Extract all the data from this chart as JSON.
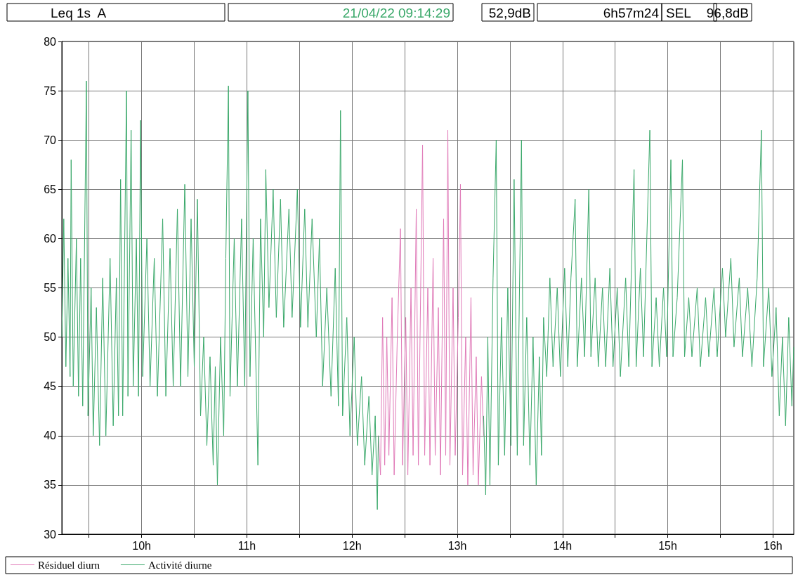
{
  "chart_data": {
    "type": "line",
    "title": "Leq 1s  A",
    "annotations": [
      "21/04/22 09:14:29",
      "52,9dB",
      "6h57m24",
      "SEL",
      "96,8dB"
    ],
    "xlim": [
      9.2414,
      16.198
    ],
    "xticks": [
      {
        "value": 9.5,
        "label": null
      },
      {
        "value": 10,
        "label": "10h"
      },
      {
        "value": 10.5,
        "label": null
      },
      {
        "value": 11,
        "label": "11h"
      },
      {
        "value": 11.5,
        "label": null
      },
      {
        "value": 12,
        "label": "12h"
      },
      {
        "value": 12.5,
        "label": null
      },
      {
        "value": 13,
        "label": "13h"
      },
      {
        "value": 13.5,
        "label": null
      },
      {
        "value": 14,
        "label": "14h"
      },
      {
        "value": 14.5,
        "label": null
      },
      {
        "value": 15,
        "label": "15h"
      },
      {
        "value": 15.5,
        "label": null
      },
      {
        "value": 16,
        "label": "16h"
      }
    ],
    "ylim": [
      30,
      80
    ],
    "yticks": [
      30,
      35,
      40,
      45,
      50,
      55,
      60,
      65,
      70,
      75,
      80
    ],
    "grid": true,
    "legend": "bottom",
    "marker": "none",
    "line_style": "solid",
    "series": [
      {
        "name": "Résiduel diurn",
        "color": "#e07ab8",
        "x": [
          12.25,
          12.27,
          12.29,
          12.31,
          12.33,
          12.35,
          12.38,
          12.4,
          12.43,
          12.46,
          12.48,
          12.51,
          12.53,
          12.56,
          12.58,
          12.61,
          12.63,
          12.67,
          12.69,
          12.72,
          12.74,
          12.77,
          12.79,
          12.82,
          12.84,
          12.87,
          12.89,
          12.91,
          12.93,
          12.96,
          12.98,
          13.01,
          13.03,
          13.05,
          13.08,
          13.1,
          13.13,
          13.15,
          13.18,
          13.2,
          13.23,
          13.25
        ],
        "values": [
          40,
          36,
          52,
          37,
          50,
          38,
          54,
          36,
          50,
          61,
          37,
          52,
          36,
          55,
          38,
          63,
          37,
          69.5,
          38,
          55,
          37,
          58,
          38,
          53,
          36,
          62,
          38,
          71,
          37,
          55,
          38,
          52,
          65.5,
          36,
          50,
          35,
          54,
          36,
          48,
          35,
          46,
          40
        ]
      },
      {
        "name": "Activité diurne",
        "color": "#3aa86a",
        "x": [
          9.242,
          9.26,
          9.28,
          9.3,
          9.32,
          9.33,
          9.35,
          9.38,
          9.4,
          9.42,
          9.44,
          9.475,
          9.49,
          9.52,
          9.54,
          9.57,
          9.6,
          9.63,
          9.66,
          9.7,
          9.73,
          9.76,
          9.78,
          9.8,
          9.82,
          9.856,
          9.87,
          9.9,
          9.92,
          9.95,
          9.97,
          9.99,
          10.01,
          10.05,
          10.08,
          10.12,
          10.15,
          10.2,
          10.23,
          10.27,
          10.3,
          10.34,
          10.37,
          10.41,
          10.44,
          10.47,
          10.5,
          10.53,
          10.56,
          10.59,
          10.62,
          10.65,
          10.68,
          10.7,
          10.72,
          10.75,
          10.78,
          10.8,
          10.825,
          10.84,
          10.88,
          10.91,
          10.95,
          10.98,
          11.01,
          11.03,
          11.06,
          11.09,
          11.105,
          11.13,
          11.16,
          11.18,
          11.21,
          11.25,
          11.28,
          11.32,
          11.35,
          11.4,
          11.43,
          11.48,
          11.51,
          11.55,
          11.58,
          11.62,
          11.66,
          11.69,
          11.72,
          11.76,
          11.8,
          11.84,
          11.87,
          11.89,
          11.91,
          11.95,
          11.98,
          12.02,
          12.05,
          12.09,
          12.12,
          12.16,
          12.19,
          12.22,
          12.24,
          12.25,
          12.8,
          13.25,
          13.27,
          13.29,
          13.31,
          13.34,
          13.37,
          13.39,
          13.42,
          13.45,
          13.48,
          13.51,
          13.54,
          13.57,
          13.61,
          13.63,
          13.66,
          13.69,
          13.72,
          13.75,
          13.78,
          13.8,
          13.82,
          13.85,
          13.88,
          13.91,
          13.95,
          13.98,
          14.02,
          14.05,
          14.08,
          14.12,
          14.14,
          14.18,
          14.21,
          14.25,
          14.27,
          14.31,
          14.34,
          14.38,
          14.41,
          14.45,
          14.48,
          14.52,
          14.55,
          14.6,
          14.63,
          14.68,
          14.7,
          14.74,
          14.77,
          14.83,
          14.85,
          14.89,
          14.92,
          14.96,
          14.99,
          15.03,
          15.05,
          15.09,
          15.14,
          15.16,
          15.2,
          15.23,
          15.28,
          15.31,
          15.36,
          15.39,
          15.44,
          15.47,
          15.52,
          15.55,
          15.6,
          15.63,
          15.68,
          15.71,
          15.76,
          15.8,
          15.85,
          15.89,
          15.91,
          15.96,
          15.99,
          16.03,
          16.06,
          16.09,
          16.12,
          16.15,
          16.18,
          16.198
        ],
        "values": [
          50,
          62,
          47,
          58,
          46,
          68,
          45,
          60,
          44,
          58,
          43,
          76,
          42,
          55,
          40,
          53,
          39,
          56,
          40,
          58,
          41,
          56,
          42,
          66,
          42,
          75,
          44,
          71,
          45,
          60,
          44,
          72,
          46,
          60,
          45,
          58,
          44,
          62,
          44,
          59,
          45,
          63,
          45,
          65.5,
          46,
          62,
          47,
          64,
          42,
          50,
          39,
          48,
          37,
          47,
          35,
          50,
          40,
          58,
          75.5,
          44,
          60,
          45,
          62,
          45,
          75,
          46,
          60,
          45,
          37,
          62,
          50,
          67,
          53,
          65,
          52,
          64,
          51,
          63,
          52,
          65,
          51,
          63,
          51,
          62,
          50,
          60,
          45,
          55,
          44,
          57,
          43,
          73,
          42,
          52,
          40,
          50,
          39,
          46,
          37,
          44,
          36,
          42,
          32.5,
          40,
          null,
          42,
          34,
          50,
          35,
          56,
          70,
          37,
          52,
          38,
          55,
          39,
          66,
          38,
          70,
          39,
          52,
          37,
          50,
          35,
          48,
          38,
          52,
          46,
          56,
          47,
          55,
          46,
          57,
          47,
          56,
          64,
          47,
          56,
          48,
          65,
          48,
          56,
          47,
          55,
          47,
          57,
          47,
          55,
          46,
          56,
          47,
          67,
          47,
          57,
          48,
          71,
          47,
          54,
          47,
          55,
          48,
          68,
          48,
          54,
          68,
          48,
          54,
          48,
          55,
          47,
          54,
          48,
          55,
          48,
          57,
          50,
          58,
          49,
          56,
          48,
          55,
          47,
          56,
          71,
          47,
          55,
          46,
          53,
          42,
          50,
          41,
          52,
          43,
          49
        ]
      }
    ]
  }
}
